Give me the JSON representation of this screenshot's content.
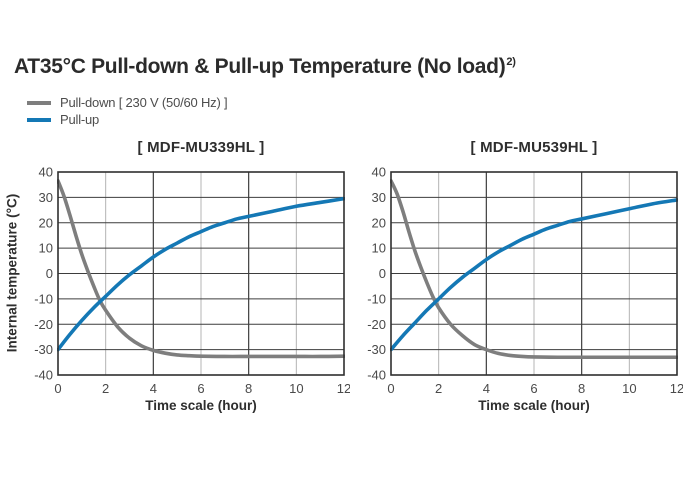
{
  "title": {
    "text": "AT35°C Pull-down & Pull-up Temperature (No load)",
    "superscript": "2)"
  },
  "legend": {
    "position": "top-left",
    "items": [
      {
        "name": "pull-down",
        "label": "Pull-down [ 230 V (50/60 Hz) ]",
        "color": "#7e7e7e"
      },
      {
        "name": "pull-up",
        "label": "Pull-up",
        "color": "#1478b5"
      }
    ]
  },
  "colors": {
    "title_text": "#2b2b2b",
    "tick_text": "#4a4a4a",
    "pull_down_curve": "#7e7e7e",
    "pull_up_curve": "#1478b5",
    "grid_dark": "#3d3d3d",
    "grid_light": "#b4b4b4",
    "plot_border": "#2f2f2f"
  },
  "chart_data": [
    {
      "type": "line",
      "title": "[ MDF-MU339HL ]",
      "xlabel": "Time scale (hour)",
      "ylabel": "Internal temperature (°C)",
      "xlim": [
        0,
        12
      ],
      "ylim": [
        -40,
        40
      ],
      "x_ticks": [
        0,
        2,
        4,
        6,
        8,
        10,
        12
      ],
      "y_ticks": [
        40,
        30,
        20,
        10,
        0,
        -10,
        -20,
        -30,
        -40
      ],
      "grid": {
        "on": true,
        "dark_color": "#3d3d3d",
        "light_color": "#b4b4b4",
        "border_color": "#2f2f2f",
        "v_dark_x": [
          4,
          8
        ]
      },
      "series": [
        {
          "name": "Pull-down",
          "color": "#7e7e7e",
          "points": [
            [
              0,
              36.5
            ],
            [
              0.25,
              30.5
            ],
            [
              0.5,
              23
            ],
            [
              0.75,
              15
            ],
            [
              1,
              7.5
            ],
            [
              1.25,
              1
            ],
            [
              1.5,
              -5
            ],
            [
              1.75,
              -10.5
            ],
            [
              2,
              -14.5
            ],
            [
              2.5,
              -21
            ],
            [
              3,
              -25.5
            ],
            [
              3.5,
              -28.5
            ],
            [
              4,
              -30.3
            ],
            [
              4.5,
              -31.4
            ],
            [
              5,
              -32.1
            ],
            [
              5.5,
              -32.4
            ],
            [
              6,
              -32.6
            ],
            [
              7,
              -32.7
            ],
            [
              8,
              -32.7
            ],
            [
              9,
              -32.7
            ],
            [
              10,
              -32.7
            ],
            [
              11,
              -32.7
            ],
            [
              12,
              -32.6
            ]
          ]
        },
        {
          "name": "Pull-up",
          "color": "#1478b5",
          "points": [
            [
              0,
              -30
            ],
            [
              0.5,
              -24
            ],
            [
              1,
              -18.5
            ],
            [
              1.5,
              -13.5
            ],
            [
              2,
              -9
            ],
            [
              2.5,
              -4.5
            ],
            [
              3,
              -0.5
            ],
            [
              3.5,
              3
            ],
            [
              4,
              6.5
            ],
            [
              4.5,
              9.5
            ],
            [
              5,
              12
            ],
            [
              5.5,
              14.5
            ],
            [
              6,
              16.5
            ],
            [
              6.5,
              18.5
            ],
            [
              7,
              20
            ],
            [
              7.5,
              21.5
            ],
            [
              8,
              22.5
            ],
            [
              9,
              24.5
            ],
            [
              10,
              26.5
            ],
            [
              11,
              28
            ],
            [
              12,
              29.5
            ]
          ]
        }
      ]
    },
    {
      "type": "line",
      "title": "[ MDF-MU539HL ]",
      "xlabel": "Time scale (hour)",
      "ylabel": "",
      "xlim": [
        0,
        12
      ],
      "ylim": [
        -40,
        40
      ],
      "x_ticks": [
        0,
        2,
        4,
        6,
        8,
        10,
        12
      ],
      "y_ticks": [
        40,
        30,
        20,
        10,
        0,
        -10,
        -20,
        -30,
        -40
      ],
      "grid": {
        "on": true,
        "dark_color": "#3d3d3d",
        "light_color": "#b4b4b4",
        "border_color": "#2f2f2f",
        "v_dark_x": [
          4,
          8
        ]
      },
      "series": [
        {
          "name": "Pull-down",
          "color": "#7e7e7e",
          "points": [
            [
              0,
              36.5
            ],
            [
              0.25,
              31.5
            ],
            [
              0.5,
              24.5
            ],
            [
              0.75,
              16.5
            ],
            [
              1,
              9
            ],
            [
              1.25,
              2.5
            ],
            [
              1.5,
              -3.5
            ],
            [
              1.75,
              -9
            ],
            [
              2,
              -13.5
            ],
            [
              2.5,
              -20
            ],
            [
              3,
              -24.5
            ],
            [
              3.5,
              -28
            ],
            [
              4,
              -30
            ],
            [
              4.5,
              -31.5
            ],
            [
              5,
              -32.3
            ],
            [
              5.5,
              -32.7
            ],
            [
              6,
              -32.9
            ],
            [
              7,
              -33
            ],
            [
              8,
              -33
            ],
            [
              9,
              -33
            ],
            [
              10,
              -33
            ],
            [
              11,
              -33
            ],
            [
              12,
              -33
            ]
          ]
        },
        {
          "name": "Pull-up",
          "color": "#1478b5",
          "points": [
            [
              0,
              -30
            ],
            [
              0.5,
              -24.5
            ],
            [
              1,
              -19.5
            ],
            [
              1.5,
              -14.5
            ],
            [
              2,
              -10
            ],
            [
              2.5,
              -5.5
            ],
            [
              3,
              -1.5
            ],
            [
              3.5,
              2
            ],
            [
              4,
              5.5
            ],
            [
              4.5,
              8.5
            ],
            [
              5,
              11
            ],
            [
              5.5,
              13.5
            ],
            [
              6,
              15.5
            ],
            [
              6.5,
              17.5
            ],
            [
              7,
              19
            ],
            [
              7.5,
              20.5
            ],
            [
              8,
              21.5
            ],
            [
              9,
              23.5
            ],
            [
              10,
              25.5
            ],
            [
              11,
              27.5
            ],
            [
              12,
              29
            ]
          ]
        }
      ]
    }
  ]
}
